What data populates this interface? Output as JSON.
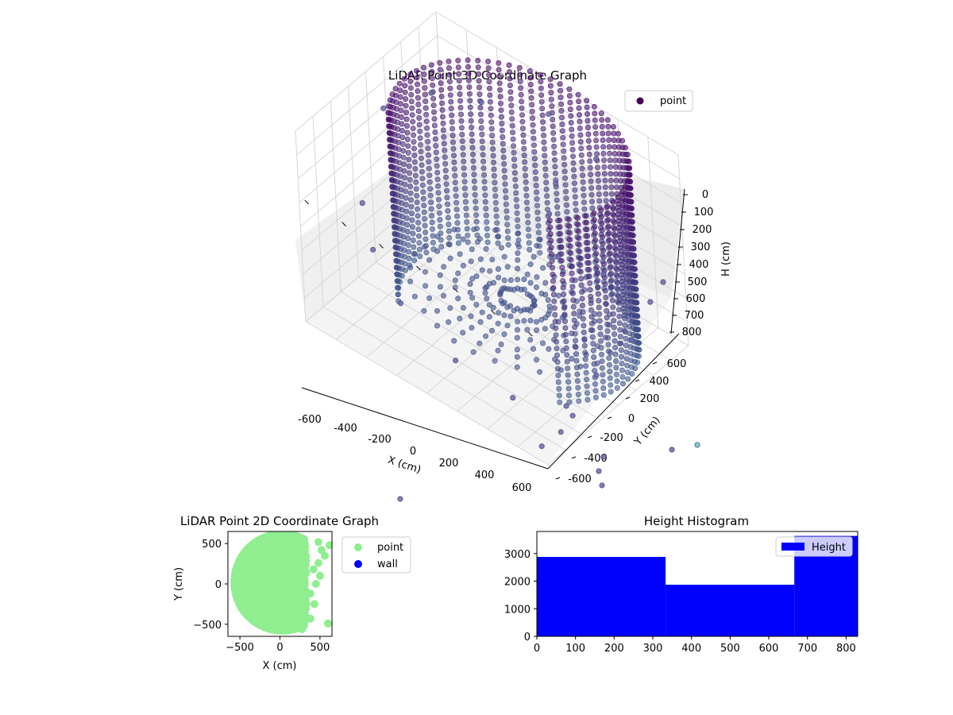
{
  "chart_data": [
    {
      "type": "scatter3d",
      "title": "LiDAR Point 3D Coordinate Graph",
      "xlabel": "X (cm)",
      "ylabel": "Y (cm)",
      "zlabel": "H (cm)",
      "legend": {
        "entries": [
          "point"
        ],
        "placement": "upper-right"
      },
      "xticks": [
        "-600",
        "-400",
        "-200",
        "0",
        "200",
        "400",
        "600"
      ],
      "yticks": [
        "-600",
        "-400",
        "-200",
        "0",
        "200",
        "400",
        "600"
      ],
      "zticks": [
        "0",
        "100",
        "200",
        "300",
        "400",
        "500",
        "600",
        "700",
        "800"
      ],
      "xlim": [
        -650,
        650
      ],
      "ylim": [
        -650,
        650
      ],
      "zlim": [
        850,
        0
      ],
      "z_axis_inverted": true,
      "grid": true,
      "colors": {
        "top": "#4b0f6b",
        "mid": "#433e85",
        "low": "#3e5a8e",
        "outlier": "#6a6aa8",
        "cyan": "#5ec9c0"
      },
      "series": [
        {
          "name": "point",
          "description_shape": "partial cylindrical wall of radius ~550 cm, heights 0-800 cm, plus sparse outliers",
          "points": [
            [
              -500,
              -100,
              50
            ],
            [
              -450,
              250,
              100
            ],
            [
              -300,
              450,
              150
            ],
            [
              0,
              560,
              100
            ],
            [
              300,
              480,
              120
            ],
            [
              -520,
              -300,
              400
            ],
            [
              -400,
              -420,
              500
            ],
            [
              -200,
              -520,
              600
            ],
            [
              100,
              -540,
              700
            ],
            [
              350,
              -450,
              780
            ],
            [
              200,
              200,
              300
            ],
            [
              150,
              350,
              250
            ],
            [
              300,
              100,
              400
            ],
            [
              420,
              300,
              500
            ],
            [
              620,
              380,
              560
            ],
            [
              650,
              150,
              620
            ],
            [
              600,
              -100,
              700
            ],
            [
              550,
              -300,
              780
            ],
            [
              700,
              -600,
              700
            ],
            [
              640,
              -680,
              760
            ],
            [
              720,
              -520,
              650
            ]
          ]
        }
      ]
    },
    {
      "type": "scatter",
      "title": "LiDAR Point 2D Coordinate Graph",
      "xlabel": "X (cm)",
      "ylabel": "Y (cm)",
      "xticks": [
        "−500",
        "0",
        "500"
      ],
      "yticks": [
        "−500",
        "0",
        "500"
      ],
      "xlim": [
        -650,
        650
      ],
      "ylim": [
        -650,
        650
      ],
      "legend": {
        "entries": [
          "point",
          "wall"
        ],
        "placement": "outside-right"
      },
      "colors": {
        "point": "#90ee90",
        "wall": "#0000ff"
      },
      "series": [
        {
          "name": "point",
          "description_shape": "filled disk-like cloud over x in [-600, 350], y in [-620, 650], with scattered points near x 400-620",
          "outliers": [
            [
              600,
              -490
            ],
            [
              480,
              520
            ],
            [
              520,
              420
            ],
            [
              560,
              350
            ],
            [
              480,
              260
            ],
            [
              420,
              180
            ],
            [
              500,
              100
            ],
            [
              450,
              0
            ],
            [
              380,
              -120
            ],
            [
              430,
              -250
            ],
            [
              250,
              -370
            ],
            [
              380,
              -430
            ],
            [
              280,
              -560
            ],
            [
              620,
              480
            ]
          ]
        },
        {
          "name": "wall",
          "points": []
        }
      ]
    },
    {
      "type": "histogram",
      "title": "Height Histogram",
      "xlabel": "",
      "ylabel": "",
      "xticks": [
        "0",
        "100",
        "200",
        "300",
        "400",
        "500",
        "600",
        "700",
        "800"
      ],
      "yticks": [
        "0",
        "1000",
        "2000",
        "3000"
      ],
      "xlim": [
        0,
        830
      ],
      "ylim": [
        0,
        3800
      ],
      "legend": {
        "entries": [
          "Height"
        ],
        "placement": "upper-right"
      },
      "colors": {
        "bar": "#0000ff"
      },
      "series": [
        {
          "name": "Height",
          "bins": [
            0,
            333,
            666,
            830
          ],
          "values": [
            2880,
            1870,
            3640
          ]
        }
      ]
    }
  ]
}
